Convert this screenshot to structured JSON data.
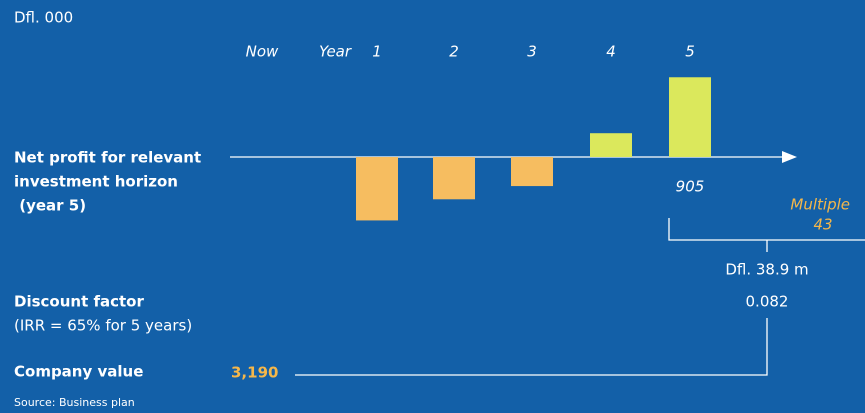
{
  "chart_data": {
    "type": "bar",
    "unit_label": "Dfl. 000",
    "header_labels": [
      "Now",
      "Year"
    ],
    "categories": [
      "1",
      "2",
      "3",
      "4",
      "5"
    ],
    "values": [
      -720,
      -480,
      -330,
      270,
      905
    ],
    "colors": [
      "#f6bd60",
      "#f6bd60",
      "#f6bd60",
      "#dbe85c",
      "#dbe85c"
    ],
    "row_label": [
      "Net profit for relevant",
      "investment horizon",
      " (year 5)"
    ],
    "multiple_label": "Multiple",
    "multiple": 43,
    "result_value": "Dfl. 38.9 m",
    "discount_label": "Discount factor",
    "discount_note": "(IRR = 65% for 5 years)",
    "discount_factor": 0.082,
    "company_label": "Company value",
    "company_value": "3,190",
    "source": "Source: Business plan"
  }
}
